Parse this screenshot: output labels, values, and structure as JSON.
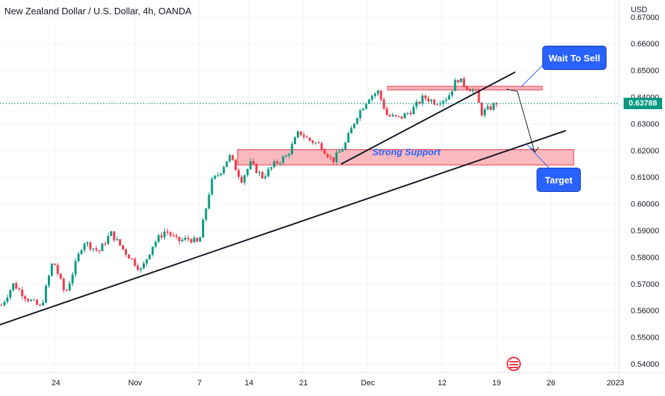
{
  "title": "New Zealand Dollar / U.S. Dollar, 4h, OANDA",
  "currency": "USD",
  "last_price": "0.63788",
  "colors": {
    "up": "#089981",
    "down": "#f23645",
    "callout": "#2962ff",
    "zone": "#f7a8ae",
    "zone_border": "#f23645",
    "support_text": "#2962ff"
  },
  "annotations": {
    "wait_to_sell": "Wait To Sell",
    "target": "Target",
    "strong_support": "Strong Support"
  },
  "icon": "us-flag-calendar-icon",
  "chart_data": {
    "type": "candlestick",
    "title": "New Zealand Dollar / U.S. Dollar, 4h, OANDA",
    "y_ticks": [
      "0.54000",
      "0.55000",
      "0.56000",
      "0.57000",
      "0.58000",
      "0.59000",
      "0.60000",
      "0.61000",
      "0.62000",
      "0.63000",
      "0.64000",
      "0.65000",
      "0.66000",
      "0.67000"
    ],
    "x_ticks": [
      "24",
      "Nov",
      "7",
      "14",
      "21",
      "Dec",
      "12",
      "19",
      "26",
      "2023"
    ],
    "ylim": [
      0.5365,
      0.673
    ],
    "price_path": [
      {
        "x": 0,
        "y": 0.562
      },
      {
        "x": 4,
        "y": 0.57
      },
      {
        "x": 8,
        "y": 0.565
      },
      {
        "x": 13,
        "y": 0.561
      },
      {
        "x": 17,
        "y": 0.579
      },
      {
        "x": 21,
        "y": 0.566
      },
      {
        "x": 27,
        "y": 0.586
      },
      {
        "x": 32,
        "y": 0.582
      },
      {
        "x": 36,
        "y": 0.589
      },
      {
        "x": 40,
        "y": 0.583
      },
      {
        "x": 46,
        "y": 0.575
      },
      {
        "x": 50,
        "y": 0.585
      },
      {
        "x": 54,
        "y": 0.59
      },
      {
        "x": 58,
        "y": 0.586
      },
      {
        "x": 62,
        "y": 0.587
      },
      {
        "x": 65,
        "y": 0.585
      },
      {
        "x": 69,
        "y": 0.608
      },
      {
        "x": 72,
        "y": 0.612
      },
      {
        "x": 75,
        "y": 0.618
      },
      {
        "x": 79,
        "y": 0.609
      },
      {
        "x": 82,
        "y": 0.615
      },
      {
        "x": 86,
        "y": 0.61
      },
      {
        "x": 90,
        "y": 0.615
      },
      {
        "x": 94,
        "y": 0.618
      },
      {
        "x": 98,
        "y": 0.627
      },
      {
        "x": 101,
        "y": 0.624
      },
      {
        "x": 105,
        "y": 0.622
      },
      {
        "x": 109,
        "y": 0.616
      },
      {
        "x": 113,
        "y": 0.622
      },
      {
        "x": 117,
        "y": 0.633
      },
      {
        "x": 121,
        "y": 0.64
      },
      {
        "x": 124,
        "y": 0.642
      },
      {
        "x": 127,
        "y": 0.633
      },
      {
        "x": 131,
        "y": 0.632
      },
      {
        "x": 135,
        "y": 0.635
      },
      {
        "x": 139,
        "y": 0.64
      },
      {
        "x": 143,
        "y": 0.638
      },
      {
        "x": 147,
        "y": 0.64
      },
      {
        "x": 150,
        "y": 0.647
      },
      {
        "x": 153,
        "y": 0.644
      },
      {
        "x": 156,
        "y": 0.642
      },
      {
        "x": 158,
        "y": 0.634
      },
      {
        "x": 161,
        "y": 0.636
      },
      {
        "x": 163,
        "y": 0.6379
      }
    ],
    "ticks_x_positions": [
      "24:0.11",
      "Nov:0.27",
      "7:0.40",
      "14:0.50",
      "21:0.61",
      "Dec:0.74",
      "12:0.89",
      "19:1.00",
      "26:1.11",
      "2023:1.24"
    ],
    "support_zone": [
      0.6175,
      0.6195
    ],
    "resistance_zone": [
      0.6433,
      0.6441
    ],
    "last_price_value": 0.63788
  }
}
